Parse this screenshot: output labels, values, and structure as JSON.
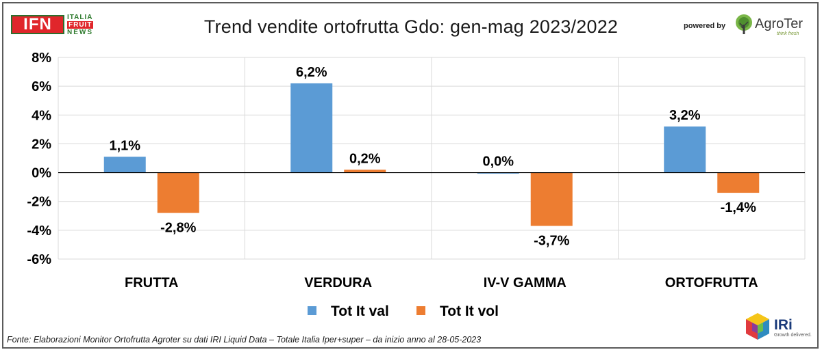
{
  "header": {
    "title": "Trend vendite ortofrutta Gdo: gen-mag 2023/2022",
    "logo_ifn": {
      "mark": "IFN",
      "line1": "ITALIA",
      "line2": "FRUIT",
      "line3": "NEWS"
    },
    "powered_by": "powered by",
    "logo_agroter": {
      "name": "AgroTer",
      "tagline": "think fresh"
    }
  },
  "footer": {
    "source": "Fonte: Elaborazioni Monitor Ortofrutta Agroter su dati IRI Liquid Data – Totale Italia Iper+super –  da inizio anno al 28-05-2023",
    "logo_iri": {
      "name": "IRi",
      "tagline": "Growth delivered."
    }
  },
  "colors": {
    "val": "#5b9bd5",
    "vol": "#ed7d31",
    "grid": "#d9d9d9",
    "axis": "#000000"
  },
  "chart_data": {
    "type": "bar",
    "title": "Trend vendite ortofrutta Gdo: gen-mag 2023/2022",
    "categories": [
      "FRUTTA",
      "VERDURA",
      "IV-V GAMMA",
      "ORTOFRUTTA"
    ],
    "series": [
      {
        "name": "Tot It val",
        "values": [
          1.1,
          6.2,
          0.0,
          3.2
        ],
        "labels": [
          "1,1%",
          "6,2%",
          "0,0%",
          "3,2%"
        ],
        "color": "#5b9bd5"
      },
      {
        "name": "Tot It  vol",
        "values": [
          -2.8,
          0.2,
          -3.7,
          -1.4
        ],
        "labels": [
          "-2,8%",
          "0,2%",
          "-3,7%",
          "-1,4%"
        ],
        "color": "#ed7d31"
      }
    ],
    "ylim": [
      -6,
      8
    ],
    "yticks": [
      8,
      6,
      4,
      2,
      0,
      -2,
      -4,
      -6
    ],
    "ytick_labels": [
      "8%",
      "6%",
      "4%",
      "2%",
      "0%",
      "-2%",
      "-4%",
      "-6%"
    ],
    "grid": true,
    "legend": "bottom"
  }
}
